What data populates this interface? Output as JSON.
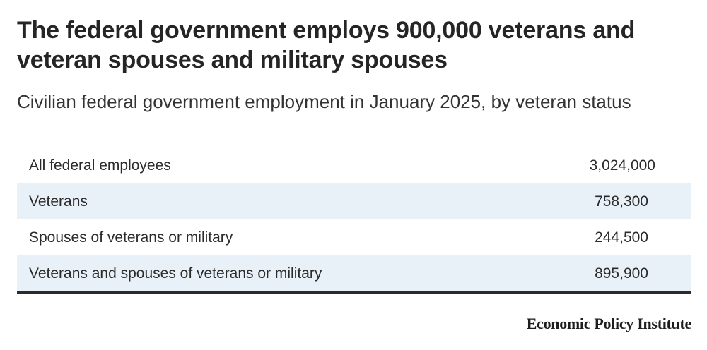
{
  "title": "The federal government employs 900,000 veterans and veteran spouses and military spouses",
  "subtitle": "Civilian federal government employment in January 2025, by veteran status",
  "source": "Economic Policy Institute",
  "colors": {
    "row_shade": "#e8f0f8",
    "text": "#2b2b2b",
    "rule": "#2b2b2b"
  },
  "chart_data": {
    "type": "table",
    "title": "The federal government employs 900,000 veterans and veteran spouses and military spouses",
    "subtitle": "Civilian federal government employment in January 2025, by veteran status",
    "rows": [
      {
        "label": "All federal employees",
        "value": "3,024,000",
        "number": 3024000
      },
      {
        "label": "Veterans",
        "value": "758,300",
        "number": 758300
      },
      {
        "label": "Spouses of veterans or military",
        "value": "244,500",
        "number": 244500
      },
      {
        "label": "Veterans and spouses of veterans or military",
        "value": "895,900",
        "number": 895900
      }
    ]
  }
}
